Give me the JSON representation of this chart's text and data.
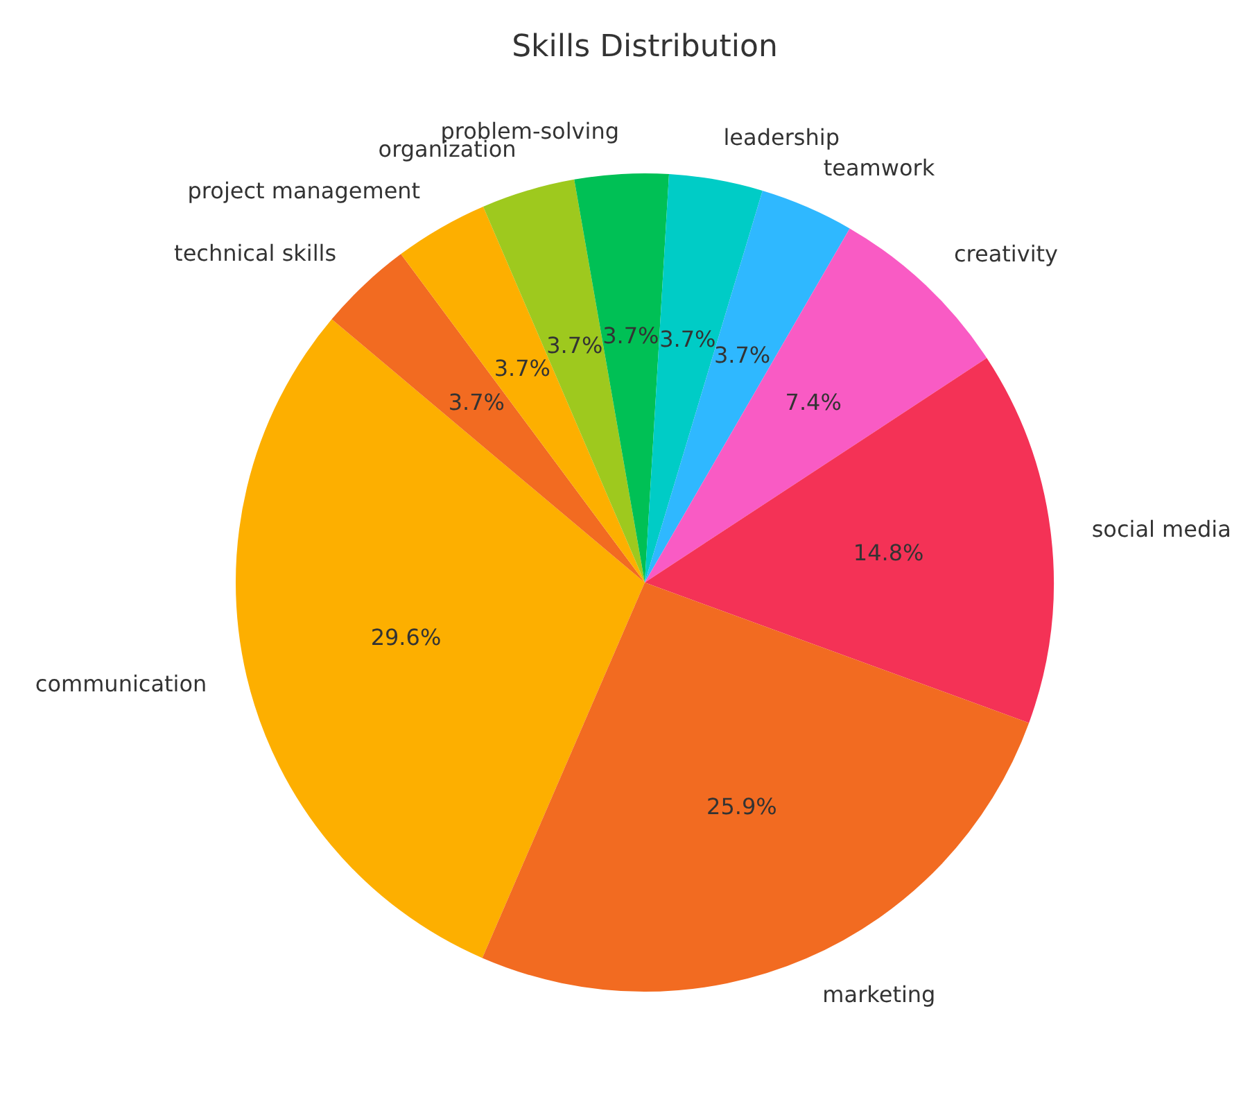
{
  "chart_data": {
    "type": "pie",
    "title": "Skills Distribution",
    "categories": [
      "communication",
      "technical skills",
      "project management",
      "organization",
      "problem-solving",
      "leadership",
      "teamwork",
      "creativity",
      "social media",
      "marketing"
    ],
    "values": [
      29.6,
      3.7,
      3.7,
      3.7,
      3.7,
      3.7,
      3.7,
      7.4,
      14.8,
      25.9
    ],
    "colors": [
      "#fdaf00",
      "#f26b21",
      "#fdaf00",
      "#9ec91e",
      "#00c055",
      "#00ccc6",
      "#2fb8ff",
      "#f95bc4",
      "#f43256",
      "#f26b21"
    ],
    "value_labels": [
      "29.6%",
      "3.7%",
      "3.7%",
      "3.7%",
      "3.7%",
      "3.7%",
      "3.7%",
      "7.4%",
      "14.8%",
      "25.9%"
    ],
    "legend": false
  }
}
